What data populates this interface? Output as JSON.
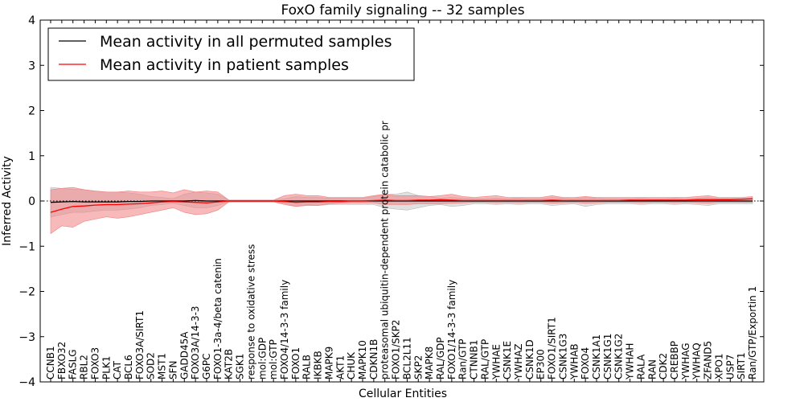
{
  "chart_data": {
    "type": "line",
    "title": "FoxO family signaling -- 32 samples",
    "xlabel": "Cellular Entities",
    "ylabel": "Inferred Activity",
    "ylim": [
      -4,
      4
    ],
    "yticks": [
      "4",
      "3",
      "2",
      "1",
      "0",
      "−1",
      "−2",
      "−3",
      "−4"
    ],
    "grid": false,
    "legend_position": "top-left",
    "categories": [
      "CCNB1",
      "FBXO32",
      "FASLG",
      "RBL2",
      "FOXO3",
      "PLK1",
      "CAT",
      "BCL6",
      "FOXO3A/SIRT1",
      "SOD2",
      "MST1",
      "SFN",
      "GADD45A",
      "FOXO3A/14-3-3",
      "G6PC",
      "FOXO1-3a-4/beta catenin",
      "KAT2B",
      "SGK1",
      "response to oxidative stress",
      "mol:GDP",
      "mol:GTP",
      "FOXO4/14-3-3 family",
      "FOXO1",
      "RALB",
      "IKBKB",
      "MAPK9",
      "AKT1",
      "CHUK",
      "MAPK10",
      "CDKN1B",
      "proteasomal ubiquitin-dependent protein catabolic pr",
      "FOXO1/SKP2",
      "BCL2L11",
      "SKP2",
      "MAPK8",
      "RAL/GDP",
      "FOXO1/14-3-3 family",
      "Ran/GTP",
      "CTNNB1",
      "RAL/GTP",
      "YWHAE",
      "CSNK1E",
      "YWHAZ",
      "CSNK1D",
      "EP300",
      "FOXO1/SIRT1",
      "CSNK1G3",
      "YWHAB",
      "FOXO4",
      "CSNK1A1",
      "CSNK1G1",
      "CSNK1G2",
      "YWHAH",
      "RALA",
      "RAN",
      "CDK2",
      "CREBBP",
      "YWHAG",
      "YWHAQ",
      "ZFAND5",
      "XPO1",
      "USP7",
      "SIRT1",
      "Ran/GTP/Exportin 1"
    ],
    "series": [
      {
        "name": "Mean activity in all permuted samples",
        "color": "#000000",
        "band_color": "#bbbbbb",
        "values": [
          -0.03,
          -0.02,
          -0.01,
          -0.02,
          -0.02,
          -0.02,
          -0.02,
          -0.01,
          -0.01,
          0.0,
          0.0,
          0.0,
          0.0,
          0.01,
          0.0,
          0.0,
          0.0,
          0.0,
          0.0,
          0.0,
          0.0,
          0.0,
          0.0,
          0.0,
          0.0,
          0.0,
          0.0,
          0.0,
          0.0,
          0.0,
          0.0,
          0.0,
          0.0,
          0.0,
          0.0,
          0.0,
          0.0,
          0.0,
          0.0,
          0.0,
          0.0,
          0.0,
          0.0,
          0.0,
          0.0,
          0.0,
          0.0,
          0.0,
          0.0,
          0.0,
          0.0,
          0.0,
          0.0,
          0.0,
          0.0,
          0.0,
          0.0,
          0.0,
          0.0,
          0.0,
          0.0,
          0.0,
          0.0,
          0.0
        ],
        "band_low": [
          -0.35,
          -0.3,
          -0.25,
          -0.25,
          -0.22,
          -0.2,
          -0.2,
          -0.18,
          -0.15,
          -0.1,
          -0.08,
          -0.05,
          -0.1,
          -0.15,
          -0.15,
          -0.1,
          -0.02,
          -0.02,
          -0.02,
          -0.02,
          -0.02,
          -0.05,
          -0.12,
          -0.08,
          -0.1,
          -0.08,
          -0.08,
          -0.08,
          -0.08,
          -0.08,
          -0.15,
          -0.18,
          -0.2,
          -0.15,
          -0.1,
          -0.08,
          -0.12,
          -0.1,
          -0.06,
          -0.06,
          -0.08,
          -0.06,
          -0.08,
          -0.06,
          -0.06,
          -0.1,
          -0.08,
          -0.06,
          -0.12,
          -0.08,
          -0.06,
          -0.06,
          -0.06,
          -0.08,
          -0.06,
          -0.06,
          -0.08,
          -0.06,
          -0.08,
          -0.1,
          -0.06,
          -0.06,
          -0.06,
          -0.06
        ],
        "band_high": [
          0.3,
          0.28,
          0.26,
          0.25,
          0.22,
          0.2,
          0.2,
          0.18,
          0.15,
          0.1,
          0.08,
          0.05,
          0.15,
          0.2,
          0.18,
          0.15,
          0.02,
          0.02,
          0.02,
          0.02,
          0.02,
          0.05,
          0.1,
          0.08,
          0.08,
          0.06,
          0.06,
          0.06,
          0.06,
          0.1,
          0.15,
          0.15,
          0.2,
          0.12,
          0.1,
          0.06,
          0.08,
          0.06,
          0.05,
          0.05,
          0.06,
          0.05,
          0.06,
          0.05,
          0.05,
          0.08,
          0.06,
          0.05,
          0.08,
          0.06,
          0.05,
          0.05,
          0.05,
          0.06,
          0.05,
          0.05,
          0.06,
          0.05,
          0.06,
          0.08,
          0.05,
          0.05,
          0.05,
          0.05
        ]
      },
      {
        "name": "Mean activity in patient samples",
        "color": "#ff0000",
        "band_color": "#f08080",
        "values": [
          -0.25,
          -0.18,
          -0.12,
          -0.11,
          -0.09,
          -0.08,
          -0.08,
          -0.07,
          -0.06,
          -0.04,
          -0.02,
          -0.01,
          -0.02,
          -0.03,
          -0.04,
          -0.02,
          0.0,
          0.0,
          0.0,
          0.0,
          0.0,
          -0.01,
          -0.03,
          -0.02,
          -0.02,
          -0.01,
          -0.01,
          0.0,
          0.0,
          0.01,
          0.02,
          0.01,
          0.01,
          0.02,
          0.02,
          0.03,
          0.02,
          0.01,
          0.01,
          0.01,
          0.01,
          0.01,
          0.01,
          0.01,
          0.01,
          0.02,
          0.01,
          0.01,
          0.01,
          0.01,
          0.01,
          0.01,
          0.02,
          0.02,
          0.02,
          0.02,
          0.02,
          0.02,
          0.03,
          0.03,
          0.03,
          0.03,
          0.04,
          0.05
        ],
        "band_low": [
          -0.72,
          -0.55,
          -0.58,
          -0.45,
          -0.4,
          -0.35,
          -0.38,
          -0.35,
          -0.3,
          -0.25,
          -0.2,
          -0.15,
          -0.25,
          -0.3,
          -0.28,
          -0.2,
          -0.02,
          -0.02,
          -0.02,
          -0.02,
          -0.02,
          -0.08,
          -0.12,
          -0.1,
          -0.1,
          -0.06,
          -0.05,
          -0.04,
          -0.04,
          -0.04,
          -0.08,
          -0.08,
          -0.08,
          -0.06,
          -0.06,
          -0.06,
          -0.05,
          -0.04,
          -0.03,
          -0.03,
          -0.04,
          -0.03,
          -0.04,
          -0.03,
          -0.03,
          -0.05,
          -0.04,
          -0.03,
          -0.05,
          -0.04,
          -0.03,
          -0.03,
          -0.03,
          -0.04,
          -0.03,
          -0.03,
          -0.04,
          -0.03,
          -0.04,
          -0.05,
          -0.03,
          -0.03,
          -0.03,
          -0.03
        ],
        "band_high": [
          0.25,
          0.28,
          0.3,
          0.25,
          0.22,
          0.2,
          0.2,
          0.22,
          0.2,
          0.2,
          0.22,
          0.18,
          0.25,
          0.2,
          0.22,
          0.2,
          0.02,
          0.02,
          0.02,
          0.02,
          0.02,
          0.12,
          0.15,
          0.12,
          0.12,
          0.08,
          0.08,
          0.08,
          0.08,
          0.12,
          0.15,
          0.12,
          0.12,
          0.12,
          0.1,
          0.12,
          0.15,
          0.1,
          0.08,
          0.1,
          0.12,
          0.08,
          0.08,
          0.08,
          0.08,
          0.12,
          0.08,
          0.08,
          0.1,
          0.08,
          0.08,
          0.08,
          0.08,
          0.08,
          0.08,
          0.08,
          0.08,
          0.08,
          0.1,
          0.12,
          0.08,
          0.08,
          0.08,
          0.1
        ]
      }
    ]
  }
}
